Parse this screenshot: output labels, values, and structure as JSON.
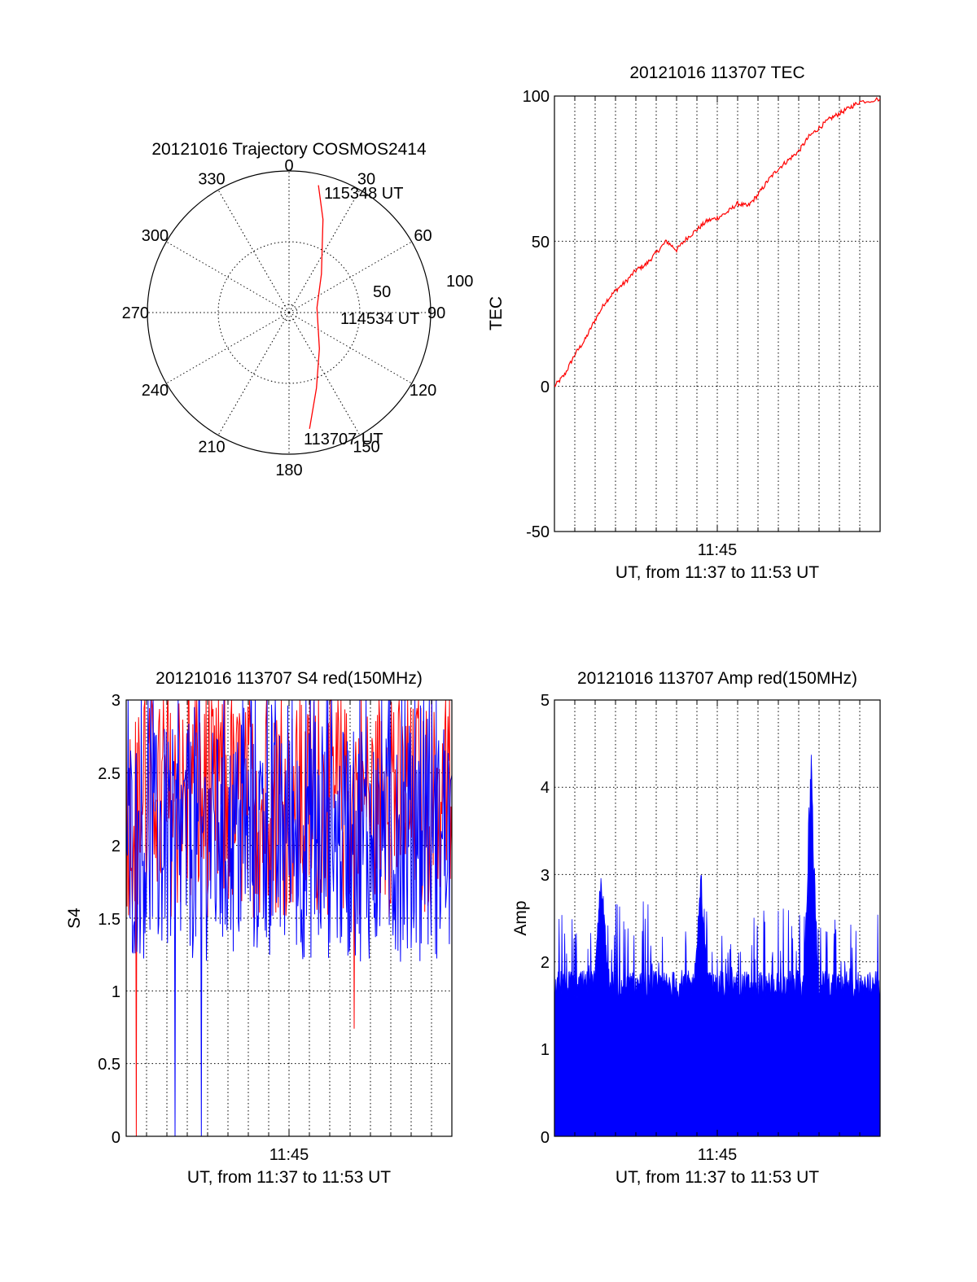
{
  "chart_data": [
    {
      "type": "polar",
      "title": "20121016 Trajectory COSMOS2414",
      "angle_labels": [
        "0",
        "30",
        "60",
        "90",
        "120",
        "150",
        "180",
        "210",
        "240",
        "270",
        "300",
        "330"
      ],
      "radial_labels": [
        "50",
        "100"
      ],
      "series": [
        {
          "color": "#ff0000",
          "points": [
            {
              "az": 13,
              "el": 7
            },
            {
              "az": 20,
              "el": 27
            },
            {
              "az": 40,
              "el": 58
            },
            {
              "az": 80,
              "el": 72
            },
            {
              "az": 140,
              "el": 60
            },
            {
              "az": 160,
              "el": 39
            },
            {
              "az": 170,
              "el": 15
            }
          ]
        }
      ],
      "annotations": [
        {
          "text": "115348 UT",
          "at": "start"
        },
        {
          "text": "114534 UT",
          "at": "middle"
        },
        {
          "text": "113707 UT",
          "at": "end"
        }
      ]
    },
    {
      "type": "line",
      "title": "20121016 113707 TEC",
      "ylabel": "TEC",
      "xlabel": "UT, from 11:37 to 11:53 UT",
      "xtick_label": "11:45",
      "yticks": [
        "100",
        "50",
        "0",
        "-50"
      ],
      "ylim": [
        -50,
        100
      ],
      "xlim_minutes": [
        0,
        16
      ],
      "series": [
        {
          "color": "#ff0000",
          "points": [
            [
              0,
              0
            ],
            [
              0.5,
              4
            ],
            [
              1,
              11
            ],
            [
              1.5,
              16
            ],
            [
              2,
              23
            ],
            [
              2.5,
              29
            ],
            [
              3,
              33
            ],
            [
              3.5,
              36
            ],
            [
              4,
              40
            ],
            [
              4.5,
              42
            ],
            [
              5,
              46
            ],
            [
              5.5,
              50
            ],
            [
              6,
              47
            ],
            [
              6.5,
              51
            ],
            [
              7,
              54
            ],
            [
              7.5,
              57
            ],
            [
              8,
              58
            ],
            [
              8.5,
              60
            ],
            [
              9,
              63
            ],
            [
              9.5,
              62
            ],
            [
              10,
              66
            ],
            [
              10.5,
              71
            ],
            [
              11,
              75
            ],
            [
              11.5,
              78
            ],
            [
              12,
              81
            ],
            [
              12.5,
              86
            ],
            [
              13,
              89
            ],
            [
              13.5,
              92
            ],
            [
              14,
              94
            ],
            [
              14.5,
              96
            ],
            [
              15,
              98
            ],
            [
              16,
              99
            ]
          ]
        }
      ]
    },
    {
      "type": "line",
      "title": "20121016 113707 S4 red(150MHz)",
      "ylabel": "S4",
      "xlabel": "UT, from 11:37 to 11:53 UT",
      "xtick_label": "11:45",
      "yticks": [
        "3",
        "2.5",
        "2",
        "1.5",
        "1",
        "0.5",
        "0"
      ],
      "ylim": [
        0,
        3
      ],
      "xlim_minutes": [
        0,
        16
      ],
      "series": [
        {
          "name": "",
          "color": "#ff0000",
          "typical_range": [
            1.5,
            3.0
          ],
          "notable_dips": [
            {
              "t": 0.5,
              "v": 0
            },
            {
              "t": 11.2,
              "v": 0.74
            }
          ]
        },
        {
          "name": "",
          "color": "#0000ff",
          "typical_range": [
            1.2,
            2.8
          ],
          "notable_dips": [
            {
              "t": 2.4,
              "v": 0
            },
            {
              "t": 3.7,
              "v": 0
            }
          ]
        }
      ]
    },
    {
      "type": "bar",
      "title": "20121016 113707 Amp red(150MHz)",
      "ylabel": "Amp",
      "xlabel": "UT, from 11:37 to 11:53 UT",
      "xtick_label": "11:45",
      "yticks": [
        "5",
        "4",
        "3",
        "2",
        "1",
        "0"
      ],
      "ylim": [
        0,
        5
      ],
      "xlim_minutes": [
        0,
        16
      ],
      "series": [
        {
          "color": "#0000ff",
          "base_level": 1.7,
          "peaks": [
            {
              "t": 2.3,
              "v": 3.2
            },
            {
              "t": 7.2,
              "v": 3.1
            },
            {
              "t": 12.6,
              "v": 4.6
            }
          ]
        }
      ]
    }
  ]
}
